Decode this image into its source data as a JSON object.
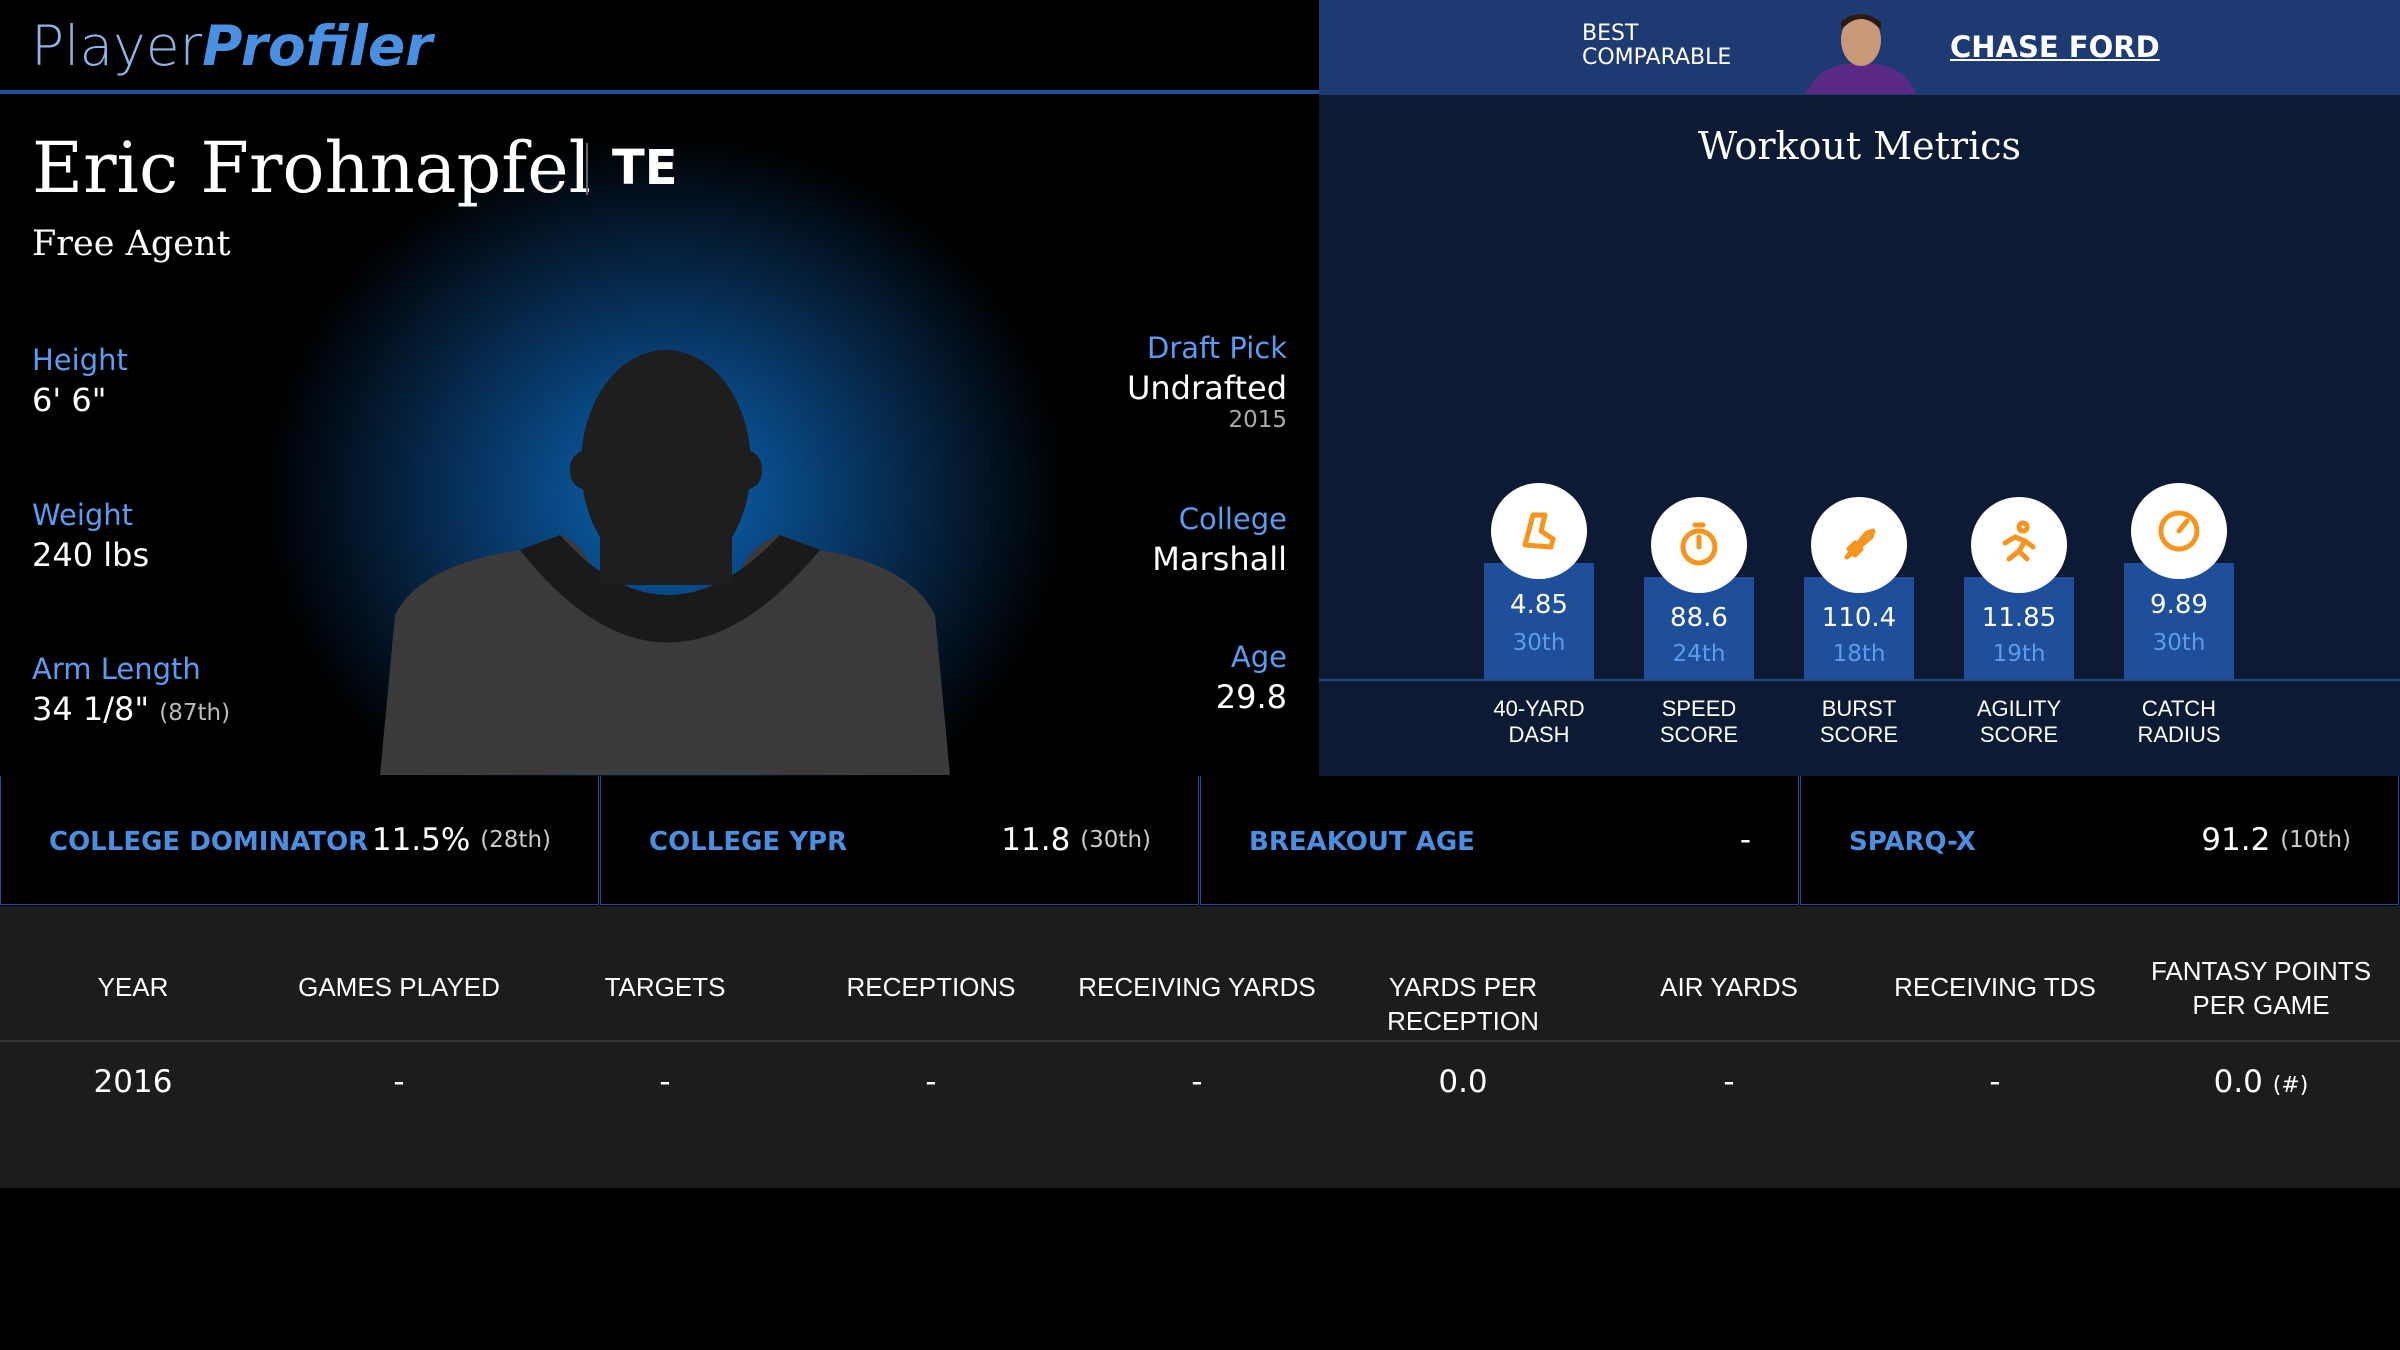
{
  "header": {
    "logo_primary": "Player",
    "logo_secondary": "Profiler",
    "comparable_label": [
      "BEST",
      "COMPARABLE"
    ],
    "comparable_name": "CHASE FORD"
  },
  "player": {
    "name": "Eric Frohnapfel",
    "position": "TE",
    "status": "Free Agent"
  },
  "bio": [
    {
      "label": "Height",
      "value": "6' 6\""
    },
    {
      "label": "Weight",
      "value": "240 lbs"
    },
    {
      "label": "Arm Length",
      "value": "34 1/8\"",
      "rank": "(87th)"
    }
  ],
  "details": [
    {
      "label": "Draft Pick",
      "value": "Undrafted",
      "note": "2015"
    },
    {
      "label": "College",
      "value": "Marshall"
    },
    {
      "label": "Age",
      "value": "29.8"
    }
  ],
  "workout": {
    "title": "Workout Metrics",
    "metrics": [
      {
        "value": "4.85",
        "percentile": "30th",
        "label": [
          "40-YARD",
          "DASH"
        ]
      },
      {
        "value": "88.6",
        "percentile": "24th",
        "label": [
          "SPEED",
          "SCORE"
        ]
      },
      {
        "value": "110.4",
        "percentile": "18th",
        "label": [
          "BURST",
          "SCORE"
        ]
      },
      {
        "value": "11.85",
        "percentile": "19th",
        "label": [
          "AGILITY",
          "SCORE"
        ]
      },
      {
        "value": "9.89",
        "percentile": "30th",
        "label": [
          "CATCH",
          "RADIUS"
        ]
      }
    ]
  },
  "college_stats": [
    {
      "label": "COLLEGE DOMINATOR",
      "value": "11.5%",
      "rank": "(28th)"
    },
    {
      "label": "COLLEGE YPR",
      "value": "11.8",
      "rank": "(30th)"
    },
    {
      "label": "BREAKOUT AGE",
      "value": "-"
    },
    {
      "label": "SPARQ-X",
      "value": "91.2",
      "rank": "(10th)"
    }
  ],
  "table": {
    "columns": [
      "YEAR",
      "GAMES PLAYED",
      "TARGETS",
      "RECEPTIONS",
      "RECEIVING YARDS",
      "YARDS PER RECEPTION",
      "AIR YARDS",
      "RECEIVING TDS",
      "FANTASY POINTS PER GAME"
    ],
    "rows": [
      [
        "2016",
        "-",
        "-",
        "-",
        "-",
        "0.0",
        "-",
        "-",
        {
          "value": "0.0",
          "rank": "(#)"
        }
      ]
    ]
  }
}
